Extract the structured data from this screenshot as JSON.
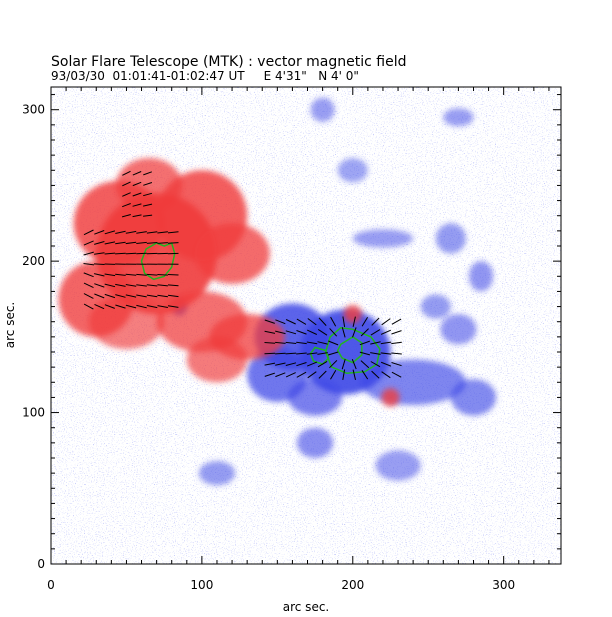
{
  "chart_data": {
    "type": "heatmap",
    "title": "Solar Flare Telescope (MTK) : vector magnetic field",
    "subtitle": "93/03/30  01:01:41-01:02:47 UT     E 4'31\"   N 4' 0\"",
    "xlabel": "arc sec.",
    "ylabel": "arc sec.",
    "xlim": [
      0,
      338
    ],
    "ylim": [
      0,
      315
    ],
    "x_ticks": [
      0,
      100,
      200,
      300
    ],
    "y_ticks": [
      0,
      100,
      200,
      300
    ],
    "grid": false,
    "colors": {
      "positive_polarity": "#f03c3c",
      "negative_polarity": "#3c46e6",
      "contour": "#21b521",
      "vectors": "#000000"
    },
    "positive_regions": [
      {
        "x": 70,
        "y": 205,
        "rx": 40,
        "ry": 40,
        "strength": 1.0
      },
      {
        "x": 45,
        "y": 225,
        "rx": 30,
        "ry": 28,
        "strength": 0.85
      },
      {
        "x": 100,
        "y": 230,
        "rx": 30,
        "ry": 30,
        "strength": 0.85
      },
      {
        "x": 30,
        "y": 175,
        "rx": 25,
        "ry": 25,
        "strength": 0.8
      },
      {
        "x": 120,
        "y": 205,
        "rx": 25,
        "ry": 20,
        "strength": 0.75
      },
      {
        "x": 100,
        "y": 160,
        "rx": 30,
        "ry": 20,
        "strength": 0.7
      },
      {
        "x": 130,
        "y": 150,
        "rx": 25,
        "ry": 15,
        "strength": 0.75
      },
      {
        "x": 110,
        "y": 135,
        "rx": 20,
        "ry": 15,
        "strength": 0.6
      },
      {
        "x": 65,
        "y": 250,
        "rx": 22,
        "ry": 18,
        "strength": 0.7
      },
      {
        "x": 50,
        "y": 160,
        "rx": 25,
        "ry": 18,
        "strength": 0.55
      },
      {
        "x": 200,
        "y": 165,
        "rx": 6,
        "ry": 6,
        "strength": 0.8
      },
      {
        "x": 225,
        "y": 110,
        "rx": 6,
        "ry": 6,
        "strength": 0.8
      }
    ],
    "negative_regions": [
      {
        "x": 195,
        "y": 140,
        "rx": 30,
        "ry": 28,
        "strength": 1.0
      },
      {
        "x": 160,
        "y": 150,
        "rx": 25,
        "ry": 22,
        "strength": 0.9
      },
      {
        "x": 150,
        "y": 125,
        "rx": 20,
        "ry": 18,
        "strength": 0.7
      },
      {
        "x": 175,
        "y": 110,
        "rx": 18,
        "ry": 12,
        "strength": 0.6
      },
      {
        "x": 240,
        "y": 120,
        "rx": 35,
        "ry": 15,
        "strength": 0.55
      },
      {
        "x": 280,
        "y": 110,
        "rx": 15,
        "ry": 12,
        "strength": 0.5
      },
      {
        "x": 175,
        "y": 80,
        "rx": 12,
        "ry": 10,
        "strength": 0.45
      },
      {
        "x": 85,
        "y": 170,
        "rx": 5,
        "ry": 6,
        "strength": 0.85
      },
      {
        "x": 270,
        "y": 155,
        "rx": 12,
        "ry": 10,
        "strength": 0.4
      },
      {
        "x": 255,
        "y": 170,
        "rx": 10,
        "ry": 8,
        "strength": 0.35
      },
      {
        "x": 285,
        "y": 190,
        "rx": 8,
        "ry": 10,
        "strength": 0.4
      },
      {
        "x": 265,
        "y": 215,
        "rx": 10,
        "ry": 10,
        "strength": 0.35
      },
      {
        "x": 220,
        "y": 215,
        "rx": 20,
        "ry": 6,
        "strength": 0.3
      },
      {
        "x": 270,
        "y": 295,
        "rx": 10,
        "ry": 6,
        "strength": 0.3
      },
      {
        "x": 180,
        "y": 300,
        "rx": 8,
        "ry": 8,
        "strength": 0.3
      },
      {
        "x": 230,
        "y": 65,
        "rx": 15,
        "ry": 10,
        "strength": 0.3
      },
      {
        "x": 110,
        "y": 60,
        "rx": 12,
        "ry": 8,
        "strength": 0.35
      },
      {
        "x": 200,
        "y": 260,
        "rx": 10,
        "ry": 8,
        "strength": 0.25
      }
    ],
    "contours": [
      {
        "polarity": "positive",
        "points": [
          [
            75,
            210
          ],
          [
            80,
            212
          ],
          [
            82,
            205
          ],
          [
            80,
            196
          ],
          [
            75,
            190
          ],
          [
            68,
            188
          ],
          [
            62,
            192
          ],
          [
            60,
            200
          ],
          [
            63,
            208
          ],
          [
            70,
            212
          ]
        ]
      },
      {
        "polarity": "negative",
        "points": [
          [
            192,
            145
          ],
          [
            200,
            150
          ],
          [
            206,
            146
          ],
          [
            206,
            138
          ],
          [
            200,
            133
          ],
          [
            193,
            136
          ],
          [
            190,
            141
          ]
        ]
      },
      {
        "polarity": "negative",
        "points": [
          [
            200,
            155
          ],
          [
            212,
            150
          ],
          [
            218,
            142
          ],
          [
            216,
            132
          ],
          [
            208,
            127
          ],
          [
            196,
            126
          ],
          [
            186,
            130
          ],
          [
            182,
            140
          ],
          [
            185,
            150
          ],
          [
            192,
            156
          ]
        ]
      },
      {
        "polarity": "negative",
        "points": [
          [
            175,
            143
          ],
          [
            182,
            141
          ],
          [
            184,
            136
          ],
          [
            180,
            132
          ],
          [
            174,
            134
          ],
          [
            172,
            139
          ]
        ]
      }
    ],
    "vector_fields": [
      {
        "x_range": [
          25,
          85
        ],
        "y_range": [
          170,
          225
        ],
        "step": 7,
        "source": [
          20,
          200
        ],
        "length": 7
      },
      {
        "x_range": [
          50,
          70
        ],
        "y_range": [
          230,
          260
        ],
        "step": 7,
        "source": [
          40,
          220
        ],
        "length": 6
      },
      {
        "x_range": [
          145,
          230
        ],
        "y_range": [
          125,
          165
        ],
        "step": 7,
        "sink": [
          197,
          142
        ],
        "length": 7
      }
    ]
  }
}
